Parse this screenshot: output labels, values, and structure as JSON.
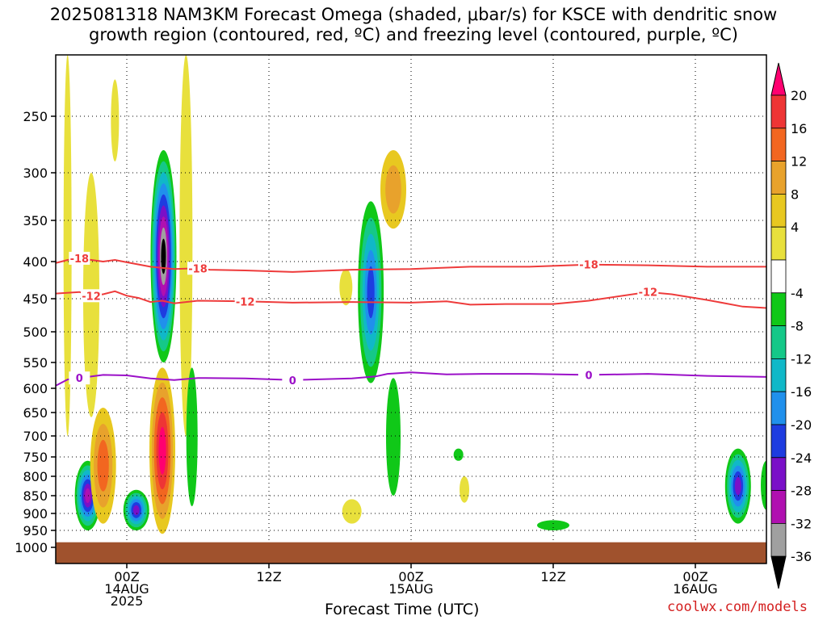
{
  "title": {
    "line1": "2025081318 NAM3KM Forecast Omega (shaded, μbar/s) for KSCE with dendritic snow",
    "line2": "growth region (contoured, red, ºC) and freezing level (contoured, purple, ºC)"
  },
  "credit": "coolwx.com/models",
  "chart_data": {
    "type": "heatmap",
    "xlabel": "Forecast Time (UTC)",
    "ylabel": "",
    "x_unit": "hours from 2025-08-13 18Z",
    "xlim": [
      0,
      60
    ],
    "ylim_hpa": [
      1000,
      200
    ],
    "x_ticks": [
      {
        "hour": 6,
        "label": "00Z",
        "sub1": "14AUG",
        "sub2": "2025"
      },
      {
        "hour": 18,
        "label": "12Z",
        "sub1": "",
        "sub2": ""
      },
      {
        "hour": 30,
        "label": "00Z",
        "sub1": "15AUG",
        "sub2": ""
      },
      {
        "hour": 42,
        "label": "12Z",
        "sub1": "",
        "sub2": ""
      },
      {
        "hour": 54,
        "label": "00Z",
        "sub1": "16AUG",
        "sub2": ""
      }
    ],
    "y_ticks": [
      250,
      300,
      350,
      400,
      450,
      500,
      550,
      600,
      650,
      700,
      750,
      800,
      850,
      900,
      950,
      1000
    ],
    "grid": true,
    "colorbar": {
      "labels": [
        "20",
        "16",
        "12",
        "8",
        "4",
        "-4",
        "-8",
        "-12",
        "-16",
        "-20",
        "-24",
        "-28",
        "-32",
        "-36"
      ],
      "colors_top_to_bottom": [
        "#ff0070",
        "#ee3535",
        "#f26620",
        "#e8a22c",
        "#e8c820",
        "#e8e03c",
        "#ffffff",
        "#10c818",
        "#15c888",
        "#10b8c8",
        "#2090ec",
        "#1e3ce0",
        "#7a10c8",
        "#b010b0",
        "#a0a0a0",
        "#000000"
      ]
    },
    "contours": [
      {
        "level": -18,
        "color": "#ee3b3b",
        "labels": [
          "-18",
          "-18",
          "-18"
        ],
        "points": [
          [
            0,
            402
          ],
          [
            1,
            398
          ],
          [
            2,
            396
          ],
          [
            3,
            398
          ],
          [
            4,
            400
          ],
          [
            5,
            398
          ],
          [
            6,
            401
          ],
          [
            8,
            407
          ],
          [
            10,
            410
          ],
          [
            12,
            409
          ],
          [
            13,
            411
          ],
          [
            16,
            412
          ],
          [
            20,
            414
          ],
          [
            25,
            411
          ],
          [
            30,
            410
          ],
          [
            35,
            407
          ],
          [
            40,
            407
          ],
          [
            45,
            404
          ],
          [
            50,
            405
          ],
          [
            55,
            407
          ],
          [
            60,
            407
          ]
        ]
      },
      {
        "level": -12,
        "color": "#ee3b3b",
        "labels": [
          "-12",
          "-12",
          "-12"
        ],
        "points": [
          [
            0,
            443
          ],
          [
            2,
            441
          ],
          [
            3,
            446
          ],
          [
            4,
            444
          ],
          [
            5,
            440
          ],
          [
            6,
            446
          ],
          [
            7,
            449
          ],
          [
            8,
            455
          ],
          [
            9,
            453
          ],
          [
            10,
            457
          ],
          [
            12,
            453
          ],
          [
            16,
            454
          ],
          [
            20,
            456
          ],
          [
            25,
            455
          ],
          [
            30,
            456
          ],
          [
            33,
            454
          ],
          [
            35,
            459
          ],
          [
            38,
            458
          ],
          [
            42,
            458
          ],
          [
            45,
            453
          ],
          [
            50,
            441
          ],
          [
            52,
            444
          ],
          [
            55,
            452
          ],
          [
            58,
            462
          ],
          [
            60,
            464
          ]
        ]
      },
      {
        "level": 0,
        "color": "#9b10c8",
        "labels": [
          "0",
          "0",
          "0"
        ],
        "points": [
          [
            0,
            595
          ],
          [
            1,
            583
          ],
          [
            2,
            580
          ],
          [
            4,
            574
          ],
          [
            6,
            575
          ],
          [
            8,
            581
          ],
          [
            10,
            584
          ],
          [
            12,
            580
          ],
          [
            16,
            581
          ],
          [
            20,
            584
          ],
          [
            25,
            581
          ],
          [
            27,
            577
          ],
          [
            28,
            572
          ],
          [
            30,
            569
          ],
          [
            33,
            573
          ],
          [
            36,
            572
          ],
          [
            40,
            572
          ],
          [
            45,
            574
          ],
          [
            50,
            572
          ],
          [
            55,
            576
          ],
          [
            60,
            578
          ]
        ]
      }
    ],
    "omega_areas": [
      {
        "name": "upward-core-a",
        "hour": 2.7,
        "p_top": 760,
        "p_bot": 950,
        "value": -28
      },
      {
        "name": "upward-core-b",
        "hour": 6.8,
        "p_top": 835,
        "p_bot": 950,
        "value": -24
      },
      {
        "name": "upward-core-c",
        "hour": 9.1,
        "p_top": 280,
        "p_bot": 550,
        "value": -36
      },
      {
        "name": "upward-core-d",
        "hour": 26.6,
        "p_top": 330,
        "p_bot": 590,
        "value": -20
      },
      {
        "name": "upward-core-e",
        "hour": 57.6,
        "p_top": 730,
        "p_bot": 930,
        "value": -24
      },
      {
        "name": "downward-core-a",
        "hour": 9.0,
        "p_top": 560,
        "p_bot": 960,
        "value": 20
      },
      {
        "name": "downward-core-b",
        "hour": 4.0,
        "p_top": 640,
        "p_bot": 930,
        "value": 12
      },
      {
        "name": "downward-core-c",
        "hour": 28.5,
        "p_top": 280,
        "p_bot": 360,
        "value": 8
      }
    ],
    "terrain": {
      "p_top": 985,
      "color": "#a0522d"
    }
  }
}
